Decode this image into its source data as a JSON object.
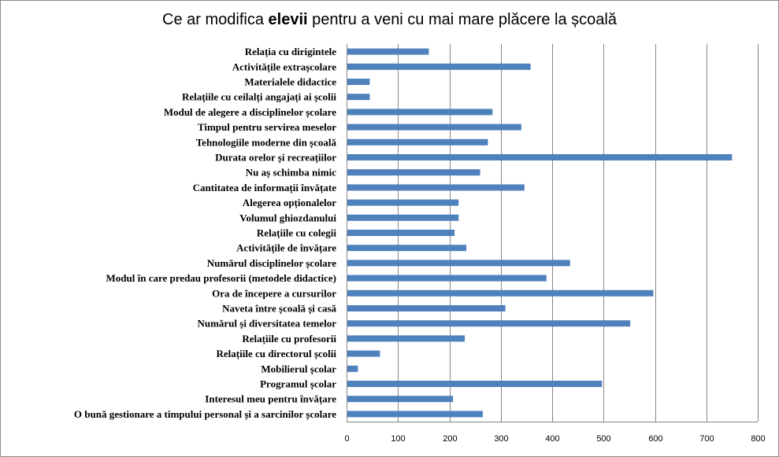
{
  "chart_data": {
    "type": "bar",
    "orientation": "horizontal",
    "title": {
      "before": "Ce ar modifica ",
      "bold": "elevii",
      "after": " pentru a veni cu mai mare plăcere la școală"
    },
    "categories": [
      "Relația cu dirigintele",
      "Activitățile extrașcolare",
      "Materialele didactice",
      "Relațiile cu ceilalți angajați ai școlii",
      "Modul de alegere a disciplinelor școlare",
      "Timpul pentru servirea meselor",
      "Tehnologiile moderne din școală",
      "Durata orelor și recreațiilor",
      "Nu aș schimba nimic",
      "Cantitatea de informații învățate",
      "Alegerea opționalelor",
      "Volumul ghiozdanului",
      "Relațiile cu colegii",
      "Activitățile de învățare",
      "Numărul disciplinelor școlare",
      "Modul în care predau profesorii (metodele didactice)",
      "Ora de începere a cursurilor",
      "Naveta între școală și casă",
      "Numărul și diversitatea temelor",
      "Relațiile cu profesorii",
      "Relațiile cu directorul școlii",
      "Mobilierul școlar",
      "Programul școlar",
      "Interesul meu pentru învățare",
      "O bună gestionare a timpului personal și a sarcinilor școlare"
    ],
    "values": [
      160,
      358,
      45,
      45,
      284,
      340,
      275,
      750,
      260,
      346,
      218,
      218,
      210,
      233,
      435,
      389,
      597,
      309,
      552,
      230,
      65,
      22,
      497,
      207,
      265
    ],
    "xlim": [
      0,
      800
    ],
    "xticks": [
      "0",
      "100",
      "200",
      "300",
      "400",
      "500",
      "600",
      "700",
      "800"
    ],
    "grid": true,
    "bar_color": "#4F81BD",
    "grid_color": "#868686"
  }
}
